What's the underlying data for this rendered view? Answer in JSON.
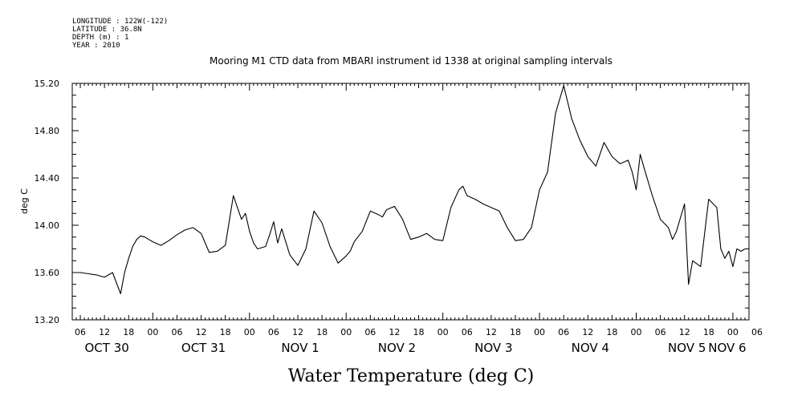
{
  "header": {
    "lines": [
      "LONGITUDE : 122W(-122)",
      "LATITUDE : 36.8N",
      "DEPTH (m) : 1",
      "YEAR : 2010"
    ]
  },
  "chart_data": {
    "type": "line",
    "title": "Mooring M1 CTD data from MBARI instrument id 1338 at original sampling intervals",
    "xlabel": "Water Temperature (deg C)",
    "ylabel": "deg C",
    "ylim": [
      13.2,
      15.2
    ],
    "yticks": [
      "13.20",
      "13.60",
      "14.00",
      "14.40",
      "14.80",
      "15.20"
    ],
    "xlim_hours": [
      4,
      172
    ],
    "hour_tick_labels": [
      "06",
      "12",
      "18",
      "00",
      "06",
      "12",
      "18",
      "00",
      "06",
      "12",
      "18",
      "00",
      "06",
      "12",
      "18",
      "00",
      "06",
      "12",
      "18",
      "00",
      "06",
      "12",
      "18",
      "00",
      "06",
      "12",
      "18",
      "00",
      "06"
    ],
    "day_labels": [
      "OCT 30",
      "OCT 31",
      "NOV  1",
      "NOV  2",
      "NOV  3",
      "NOV  4",
      "NOV  5",
      "NOV  6"
    ],
    "grid": false,
    "series": [
      {
        "color": "#000000",
        "x_hours_since_oct30_00": [
          4,
          6,
          8,
          10,
          12,
          14,
          16,
          17,
          18,
          19,
          20,
          21,
          22,
          23,
          24,
          26,
          28,
          30,
          32,
          34,
          36,
          38,
          40,
          42,
          44,
          46,
          47,
          48,
          49,
          50,
          52,
          53,
          54,
          55,
          56,
          58,
          60,
          62,
          64,
          66,
          68,
          70,
          72,
          73,
          74,
          76,
          78,
          80,
          81,
          82,
          84,
          86,
          88,
          90,
          92,
          94,
          96,
          98,
          100,
          101,
          102,
          104,
          106,
          108,
          110,
          112,
          114,
          116,
          118,
          120,
          122,
          124,
          126,
          128,
          130,
          132,
          134,
          136,
          138,
          140,
          142,
          143,
          144,
          145,
          146,
          148,
          150,
          152,
          153,
          154,
          156,
          157,
          158,
          160,
          162,
          164,
          165,
          166,
          167,
          168,
          169,
          170,
          171
        ],
        "y": [
          13.6,
          13.6,
          13.59,
          13.58,
          13.56,
          13.6,
          13.42,
          13.6,
          13.72,
          13.82,
          13.88,
          13.91,
          13.9,
          13.88,
          13.86,
          13.83,
          13.87,
          13.92,
          13.96,
          13.98,
          13.93,
          13.77,
          13.78,
          13.83,
          14.25,
          14.05,
          14.1,
          13.95,
          13.85,
          13.8,
          13.82,
          13.92,
          14.03,
          13.85,
          13.97,
          13.75,
          13.66,
          13.8,
          14.12,
          14.02,
          13.82,
          13.68,
          13.74,
          13.78,
          13.86,
          13.95,
          14.12,
          14.09,
          14.07,
          14.13,
          14.16,
          14.05,
          13.88,
          13.9,
          13.93,
          13.88,
          13.87,
          14.15,
          14.3,
          14.33,
          14.25,
          14.22,
          14.18,
          14.15,
          14.12,
          13.98,
          13.87,
          13.88,
          13.98,
          14.3,
          14.45,
          14.95,
          15.18,
          14.9,
          14.72,
          14.58,
          14.5,
          14.7,
          14.58,
          14.52,
          14.55,
          14.45,
          14.3,
          14.6,
          14.48,
          14.25,
          14.05,
          13.98,
          13.88,
          13.95,
          14.18,
          13.5,
          13.7,
          13.65,
          14.22,
          14.15,
          13.8,
          13.72,
          13.78,
          13.65,
          13.8,
          13.78,
          13.8
        ]
      }
    ]
  }
}
